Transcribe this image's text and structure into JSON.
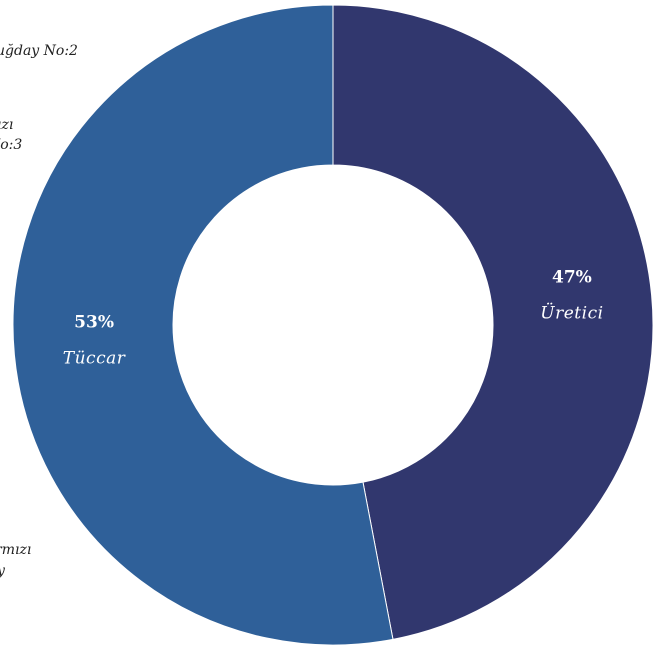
{
  "chart_data": {
    "type": "pie",
    "variant": "donut",
    "slices": [
      {
        "label": "Üretici",
        "value": 47,
        "percent_label": "47%",
        "color": "#31376e"
      },
      {
        "label": "Tüccar",
        "value": 53,
        "percent_label": "53%",
        "color": "#2f6099"
      }
    ],
    "outside_labels": [
      {
        "text": "uğday No:2"
      },
      {
        "text": "ızı"
      },
      {
        "text": "No:3"
      },
      {
        "text": "rmızı"
      },
      {
        "text": "y"
      }
    ]
  },
  "colors": {
    "background": "#ffffff",
    "separator": "#ffffff"
  }
}
